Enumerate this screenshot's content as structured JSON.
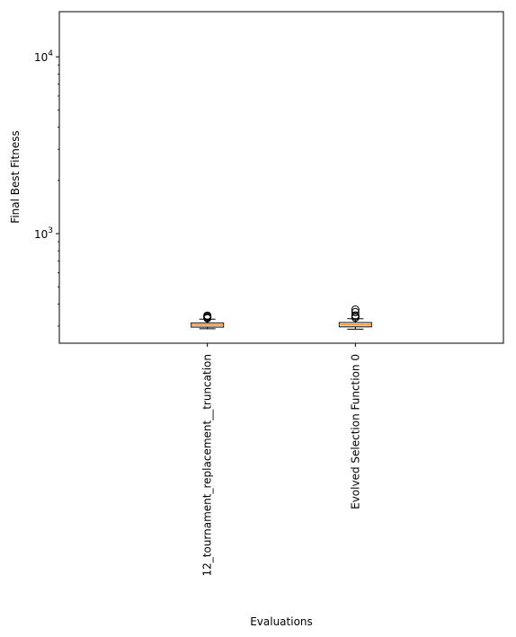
{
  "chart_data": {
    "type": "box",
    "title": "",
    "xlabel": "Evaluations",
    "ylabel": "Final Best Fitness",
    "yscale": "log",
    "ylim": [
      240,
      18000
    ],
    "grid": false,
    "legend": "none",
    "yticks": [
      {
        "value": 1000,
        "base": "10",
        "exp": "3"
      },
      {
        "value": 10000,
        "base": "10",
        "exp": "4"
      }
    ],
    "categories": [
      "12_tournament_replacement__truncation",
      "Evolved Selection Function 0"
    ],
    "boxes": [
      {
        "whisker_low": 290,
        "q1": 296,
        "median": 304,
        "q3": 312,
        "whisker_high": 328,
        "outliers": [
          332,
          336,
          340,
          344
        ]
      },
      {
        "whisker_low": 288,
        "q1": 297,
        "median": 305,
        "q3": 314,
        "whisker_high": 330,
        "outliers": [
          334,
          340,
          345,
          360,
          372
        ]
      }
    ],
    "colors": {
      "box_edge": "#000000",
      "median": "#ff7f0e",
      "outlier": "#000000"
    }
  }
}
